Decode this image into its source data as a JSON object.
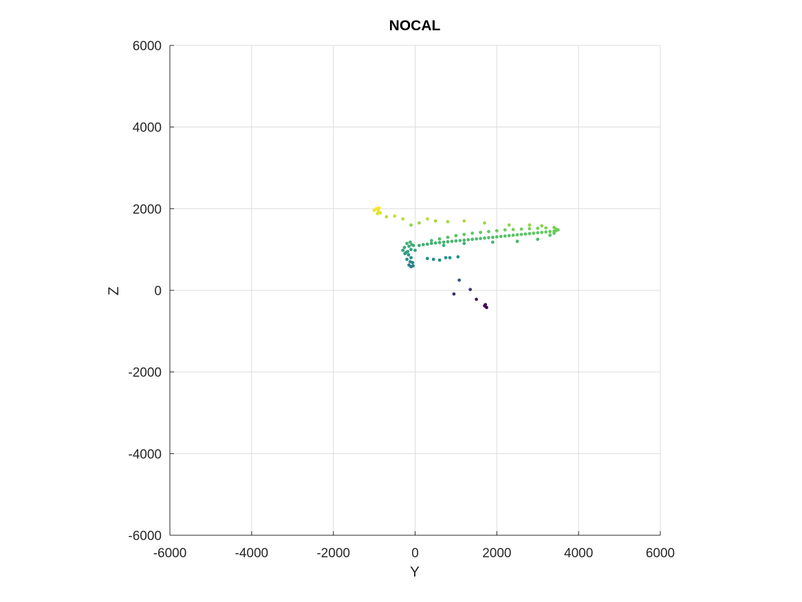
{
  "chart_data": {
    "type": "scatter",
    "title": "NOCAL",
    "xlabel": "Y",
    "ylabel": "Z",
    "xlim": [
      -6000,
      6000
    ],
    "ylim": [
      -6000,
      6000
    ],
    "xticks": [
      -6000,
      -4000,
      -2000,
      0,
      2000,
      4000,
      6000
    ],
    "yticks": [
      -6000,
      -4000,
      -2000,
      0,
      2000,
      4000,
      6000
    ],
    "grid": true,
    "colormap": [
      "#440154",
      "#3b528b",
      "#21918c",
      "#5ec962",
      "#fde725"
    ],
    "points": [
      [
        1750,
        -420
      ],
      [
        1700,
        -380
      ],
      [
        1720,
        -350
      ],
      [
        1500,
        -220
      ],
      [
        950,
        -90
      ],
      [
        1350,
        20
      ],
      [
        1080,
        250
      ],
      [
        -100,
        580
      ],
      [
        -150,
        620
      ],
      [
        -50,
        600
      ],
      [
        -120,
        700
      ],
      [
        -60,
        680
      ],
      [
        -200,
        760
      ],
      [
        -100,
        800
      ],
      [
        -250,
        900
      ],
      [
        -180,
        950
      ],
      [
        -100,
        1000
      ],
      [
        -260,
        1050
      ],
      [
        -150,
        1080
      ],
      [
        -80,
        1120
      ],
      [
        -200,
        1150
      ],
      [
        -120,
        1180
      ],
      [
        -40,
        1100
      ],
      [
        0,
        980
      ],
      [
        -300,
        980
      ],
      [
        -230,
        920
      ],
      [
        -160,
        870
      ],
      [
        300,
        780
      ],
      [
        450,
        760
      ],
      [
        600,
        740
      ],
      [
        750,
        800
      ],
      [
        850,
        800
      ],
      [
        1050,
        820
      ],
      [
        100,
        1100
      ],
      [
        200,
        1120
      ],
      [
        300,
        1130
      ],
      [
        400,
        1150
      ],
      [
        500,
        1160
      ],
      [
        600,
        1170
      ],
      [
        700,
        1180
      ],
      [
        800,
        1190
      ],
      [
        900,
        1200
      ],
      [
        1000,
        1210
      ],
      [
        1100,
        1220
      ],
      [
        1200,
        1230
      ],
      [
        1300,
        1240
      ],
      [
        1400,
        1250
      ],
      [
        1500,
        1260
      ],
      [
        1600,
        1270
      ],
      [
        1700,
        1280
      ],
      [
        1800,
        1290
      ],
      [
        1900,
        1300
      ],
      [
        2000,
        1310
      ],
      [
        2100,
        1320
      ],
      [
        2200,
        1330
      ],
      [
        2300,
        1340
      ],
      [
        2400,
        1350
      ],
      [
        2500,
        1360
      ],
      [
        2600,
        1370
      ],
      [
        2700,
        1380
      ],
      [
        2800,
        1390
      ],
      [
        2900,
        1400
      ],
      [
        3000,
        1410
      ],
      [
        3100,
        1420
      ],
      [
        3200,
        1430
      ],
      [
        3300,
        1440
      ],
      [
        3400,
        1450
      ],
      [
        3450,
        1460
      ],
      [
        400,
        1220
      ],
      [
        600,
        1260
      ],
      [
        800,
        1300
      ],
      [
        1000,
        1340
      ],
      [
        1200,
        1370
      ],
      [
        1400,
        1400
      ],
      [
        1600,
        1420
      ],
      [
        1800,
        1440
      ],
      [
        2000,
        1460
      ],
      [
        2200,
        1480
      ],
      [
        2400,
        1490
      ],
      [
        2600,
        1500
      ],
      [
        2800,
        1510
      ],
      [
        3000,
        1520
      ],
      [
        3200,
        1530
      ],
      [
        3400,
        1540
      ],
      [
        3450,
        1500
      ],
      [
        3400,
        1400
      ],
      [
        3300,
        1350
      ],
      [
        3500,
        1480
      ],
      [
        700,
        1100
      ],
      [
        1200,
        1150
      ],
      [
        1900,
        1180
      ],
      [
        2500,
        1200
      ],
      [
        3000,
        1250
      ],
      [
        1200,
        1700
      ],
      [
        1700,
        1650
      ],
      [
        2300,
        1600
      ],
      [
        2800,
        1600
      ],
      [
        3100,
        1580
      ],
      [
        500,
        1700
      ],
      [
        800,
        1680
      ],
      [
        300,
        1750
      ],
      [
        100,
        1650
      ],
      [
        -100,
        1600
      ],
      [
        -300,
        1750
      ],
      [
        -500,
        1820
      ],
      [
        -700,
        1800
      ],
      [
        -850,
        1900
      ],
      [
        -900,
        1950
      ],
      [
        -950,
        2000
      ],
      [
        -1000,
        1960
      ],
      [
        -880,
        2020
      ],
      [
        -920,
        1880
      ]
    ]
  }
}
